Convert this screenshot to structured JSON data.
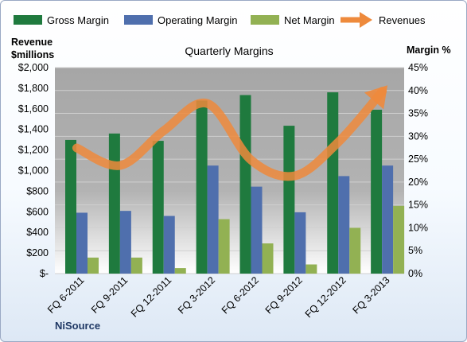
{
  "chart_data": {
    "type": "bar",
    "title": "Quarterly Margins",
    "footer": "NiSource",
    "left_axis_label": [
      "Revenue",
      "$millions"
    ],
    "right_axis_label": "Margin %",
    "categories": [
      "FQ 6-2011",
      "FQ 9-2011",
      "FQ 12-2011",
      "FQ 3-2012",
      "FQ 6-2012",
      "FQ 9-2012",
      "FQ 12-2012",
      "FQ 3-2013"
    ],
    "left_axis": {
      "min": 0,
      "max": 2000,
      "step": 200,
      "ticks": [
        "$-",
        "$200",
        "$400",
        "$600",
        "$800",
        "$1,000",
        "$1,200",
        "$1,400",
        "$1,600",
        "$1,800",
        "$2,000"
      ]
    },
    "right_axis": {
      "min": 0,
      "max": 45,
      "step": 5,
      "ticks": [
        "0%",
        "5%",
        "10%",
        "15%",
        "20%",
        "25%",
        "30%",
        "35%",
        "40%",
        "45%"
      ]
    },
    "series": [
      {
        "name": "Gross Margin",
        "axis": "right",
        "color": "#1f7a3e",
        "values": [
          29.2,
          30.6,
          29.0,
          37.8,
          39.0,
          32.3,
          39.6,
          35.8
        ]
      },
      {
        "name": "Operating Margin",
        "axis": "right",
        "color": "#4f6fad",
        "values": [
          13.3,
          13.7,
          12.6,
          23.6,
          19.0,
          13.4,
          21.3,
          23.6
        ]
      },
      {
        "name": "Net Margin",
        "axis": "right",
        "color": "#92b153",
        "values": [
          3.5,
          3.5,
          1.2,
          11.9,
          6.6,
          2.0,
          10.0,
          14.8
        ]
      },
      {
        "name": "Revenues",
        "axis": "left",
        "type": "line",
        "color": "#ee8a3c",
        "values": [
          1220,
          1050,
          1390,
          1650,
          1100,
          950,
          1280,
          1770
        ]
      }
    ],
    "grid": true,
    "legend_position": "top"
  }
}
